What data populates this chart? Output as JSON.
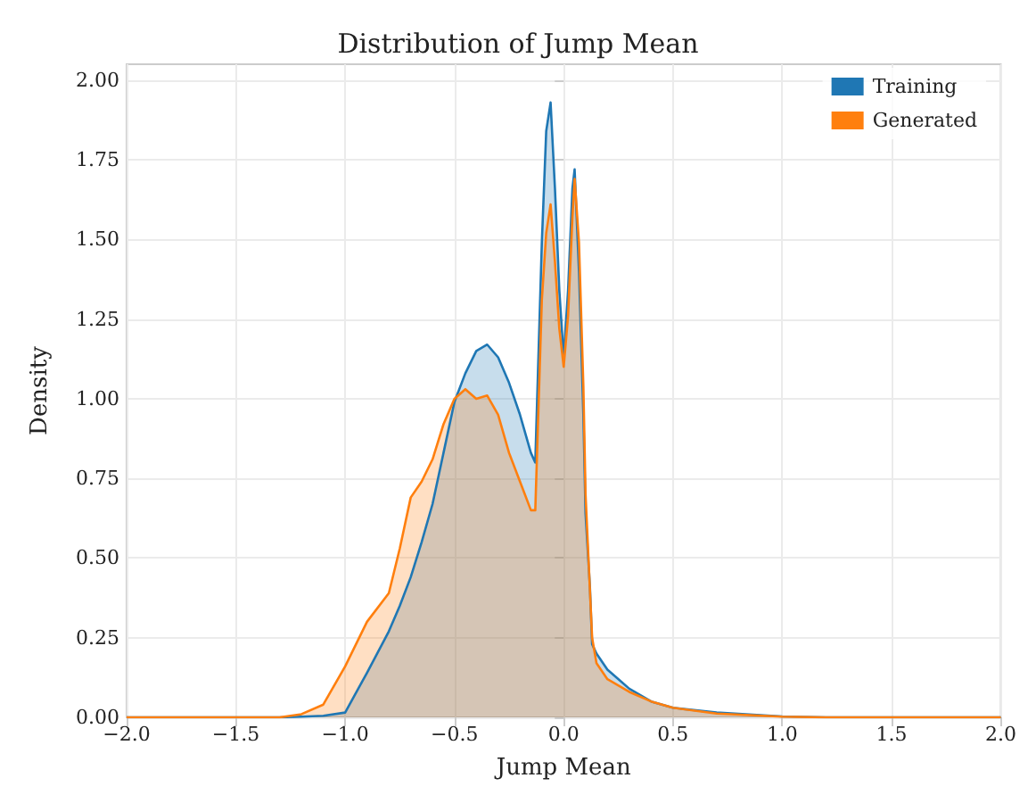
{
  "chart_data": {
    "type": "area",
    "title": "Distribution of Jump Mean",
    "xlabel": "Jump Mean",
    "ylabel": "Density",
    "x": [
      -2.0,
      -1.3,
      -1.2,
      -1.1,
      -1.0,
      -0.9,
      -0.8,
      -0.75,
      -0.7,
      -0.65,
      -0.6,
      -0.55,
      -0.5,
      -0.45,
      -0.4,
      -0.35,
      -0.3,
      -0.25,
      -0.2,
      -0.15,
      -0.13,
      -0.1,
      -0.08,
      -0.06,
      -0.04,
      -0.02,
      0,
      0.02,
      0.04,
      0.05,
      0.07,
      0.09,
      0.1,
      0.12,
      0.13,
      0.15,
      0.2,
      0.3,
      0.4,
      0.5,
      0.7,
      1.0,
      1.2,
      2.0
    ],
    "series": [
      {
        "name": "Training",
        "color": "#1f77b4",
        "values": [
          0,
          0,
          0.002,
          0.005,
          0.015,
          0.14,
          0.27,
          0.35,
          0.44,
          0.55,
          0.67,
          0.83,
          0.99,
          1.08,
          1.15,
          1.17,
          1.13,
          1.05,
          0.95,
          0.83,
          0.8,
          1.49,
          1.84,
          1.93,
          1.66,
          1.34,
          1.13,
          1.34,
          1.66,
          1.72,
          1.4,
          0.95,
          0.64,
          0.41,
          0.23,
          0.2,
          0.15,
          0.09,
          0.05,
          0.03,
          0.015,
          0.003,
          0,
          0
        ]
      },
      {
        "name": "Generated",
        "color": "#ff7f0e",
        "values": [
          0,
          0,
          0.01,
          0.04,
          0.16,
          0.3,
          0.39,
          0.53,
          0.69,
          0.74,
          0.81,
          0.92,
          1.0,
          1.03,
          1.0,
          1.01,
          0.95,
          0.83,
          0.74,
          0.65,
          0.65,
          1.31,
          1.52,
          1.61,
          1.43,
          1.22,
          1.1,
          1.26,
          1.57,
          1.69,
          1.49,
          1.04,
          0.7,
          0.4,
          0.25,
          0.17,
          0.12,
          0.08,
          0.05,
          0.03,
          0.012,
          0.002,
          0,
          0
        ]
      }
    ],
    "xlim": [
      -2.0,
      2.0
    ],
    "xticks": [
      {
        "value": -2,
        "label": "−2.0"
      },
      {
        "value": -1.5,
        "label": "−1.5"
      },
      {
        "value": -1,
        "label": "−1.0"
      },
      {
        "value": -0.5,
        "label": "−0.5"
      },
      {
        "value": 0,
        "label": "0.0"
      },
      {
        "value": 0.5,
        "label": "0.5"
      },
      {
        "value": 1,
        "label": "1.0"
      },
      {
        "value": 1.5,
        "label": "1.5"
      },
      {
        "value": 2,
        "label": "2.0"
      }
    ],
    "ylim": [
      0,
      2.05
    ],
    "yticks": [
      {
        "value": 0,
        "label": "0.00"
      },
      {
        "value": 0.25,
        "label": "0.25"
      },
      {
        "value": 0.5,
        "label": "0.50"
      },
      {
        "value": 0.75,
        "label": "0.75"
      },
      {
        "value": 1,
        "label": "1.00"
      },
      {
        "value": 1.25,
        "label": "1.25"
      },
      {
        "value": 1.5,
        "label": "1.50"
      },
      {
        "value": 1.75,
        "label": "1.75"
      },
      {
        "value": 2,
        "label": "2.00"
      }
    ],
    "grid": true,
    "legend": "top right",
    "marker": "none",
    "line_style": "solid"
  }
}
